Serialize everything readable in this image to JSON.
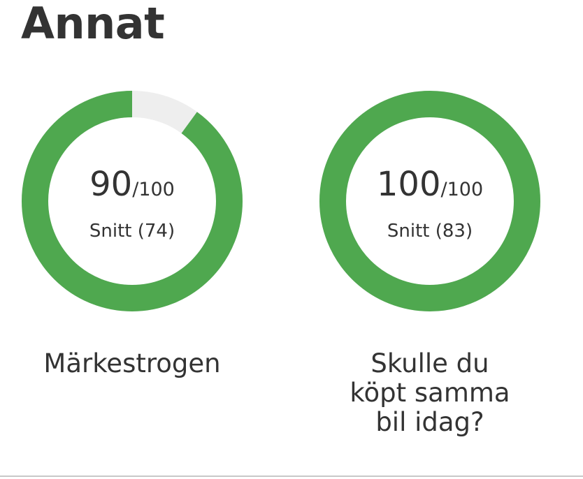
{
  "section": {
    "title": "Annat"
  },
  "colors": {
    "accent": "#4fa84f",
    "track": "#eeeeee"
  },
  "gauges": [
    {
      "score": "90",
      "max": "/100",
      "value": 90,
      "average": "Snitt (74)",
      "label": "Märkestrogen"
    },
    {
      "score": "100",
      "max": "/100",
      "value": 100,
      "average": "Snitt (83)",
      "label": "Skulle du köpt samma bil idag?"
    }
  ]
}
